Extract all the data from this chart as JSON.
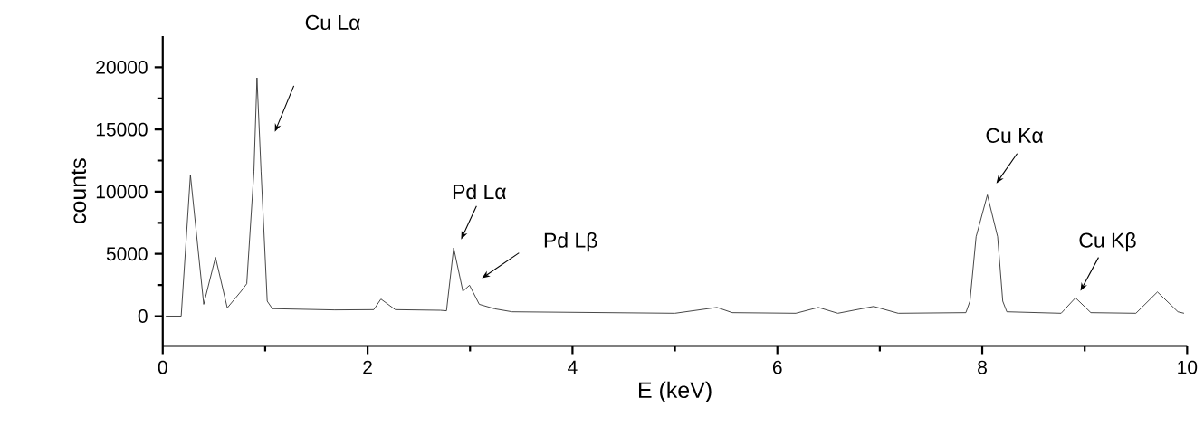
{
  "chart_data": {
    "type": "line",
    "xlabel": "E (keV)",
    "ylabel": "counts",
    "color": "#333333",
    "xlim": [
      0,
      10
    ],
    "xticks": [
      0,
      2,
      4,
      6,
      8,
      10
    ],
    "ylim": [
      -2400,
      22500
    ],
    "yticks": [
      0,
      5000,
      10000,
      15000,
      20000
    ],
    "x": [
      0.03,
      0.18,
      0.27,
      0.4,
      0.515,
      0.63,
      0.765,
      0.82,
      0.89,
      0.92,
      0.96,
      1.02,
      1.07,
      1.68,
      2.06,
      2.13,
      2.27,
      2.71,
      2.77,
      2.84,
      2.93,
      2.995,
      3.09,
      3.24,
      3.41,
      5.0,
      5.41,
      5.56,
      6.18,
      6.4,
      6.59,
      6.94,
      7.18,
      7.84,
      7.88,
      7.94,
      8.05,
      8.15,
      8.2,
      8.24,
      8.77,
      8.91,
      9.06,
      9.5,
      9.71,
      9.91,
      9.97
    ],
    "values": [
      0,
      0,
      11350,
      950,
      4730,
      660,
      2000,
      2600,
      11600,
      19150,
      11600,
      1200,
      600,
      500,
      520,
      1370,
      520,
      470,
      430,
      5480,
      2000,
      2480,
      950,
      590,
      350,
      230,
      700,
      280,
      230,
      700,
      230,
      780,
      230,
      280,
      1200,
      6380,
      9740,
      6380,
      1200,
      350,
      230,
      1470,
      280,
      230,
      1940,
      350,
      230
    ],
    "annotations": [
      "Cu Lα",
      "Pd Lα",
      "Pd Lβ",
      "Cu Kα",
      "Cu Kβ"
    ]
  }
}
